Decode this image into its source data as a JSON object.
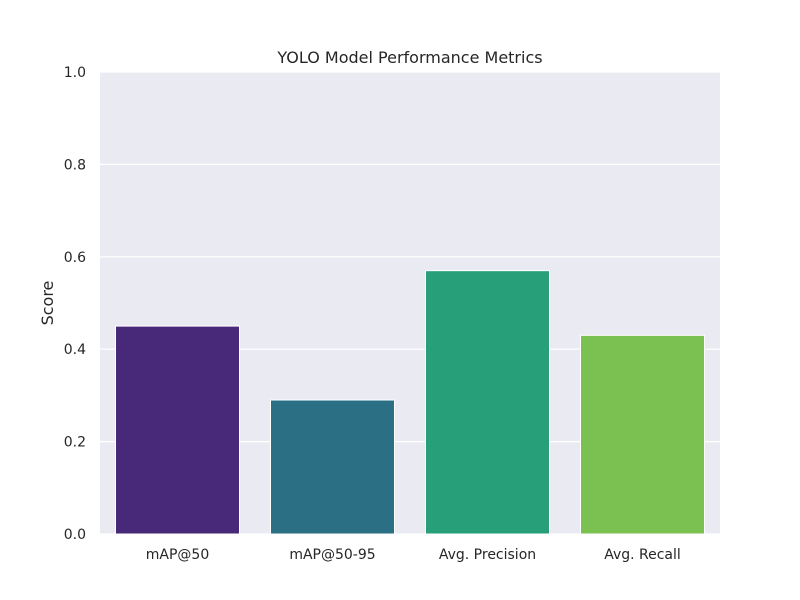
{
  "chart_data": {
    "type": "bar",
    "title": "YOLO Model Performance Metrics",
    "xlabel": "",
    "ylabel": "Score",
    "categories": [
      "mAP@50",
      "mAP@50-95",
      "Avg. Precision",
      "Avg. Recall"
    ],
    "values": [
      0.45,
      0.29,
      0.57,
      0.43
    ],
    "colors": [
      "#482878",
      "#2a6f84",
      "#27a07a",
      "#7ac152"
    ],
    "ylim": [
      0,
      1
    ],
    "yticks": [
      "0.0",
      "0.2",
      "0.4",
      "0.6",
      "0.8",
      "1.0"
    ],
    "grid": true,
    "background": "#eaeaf2"
  }
}
